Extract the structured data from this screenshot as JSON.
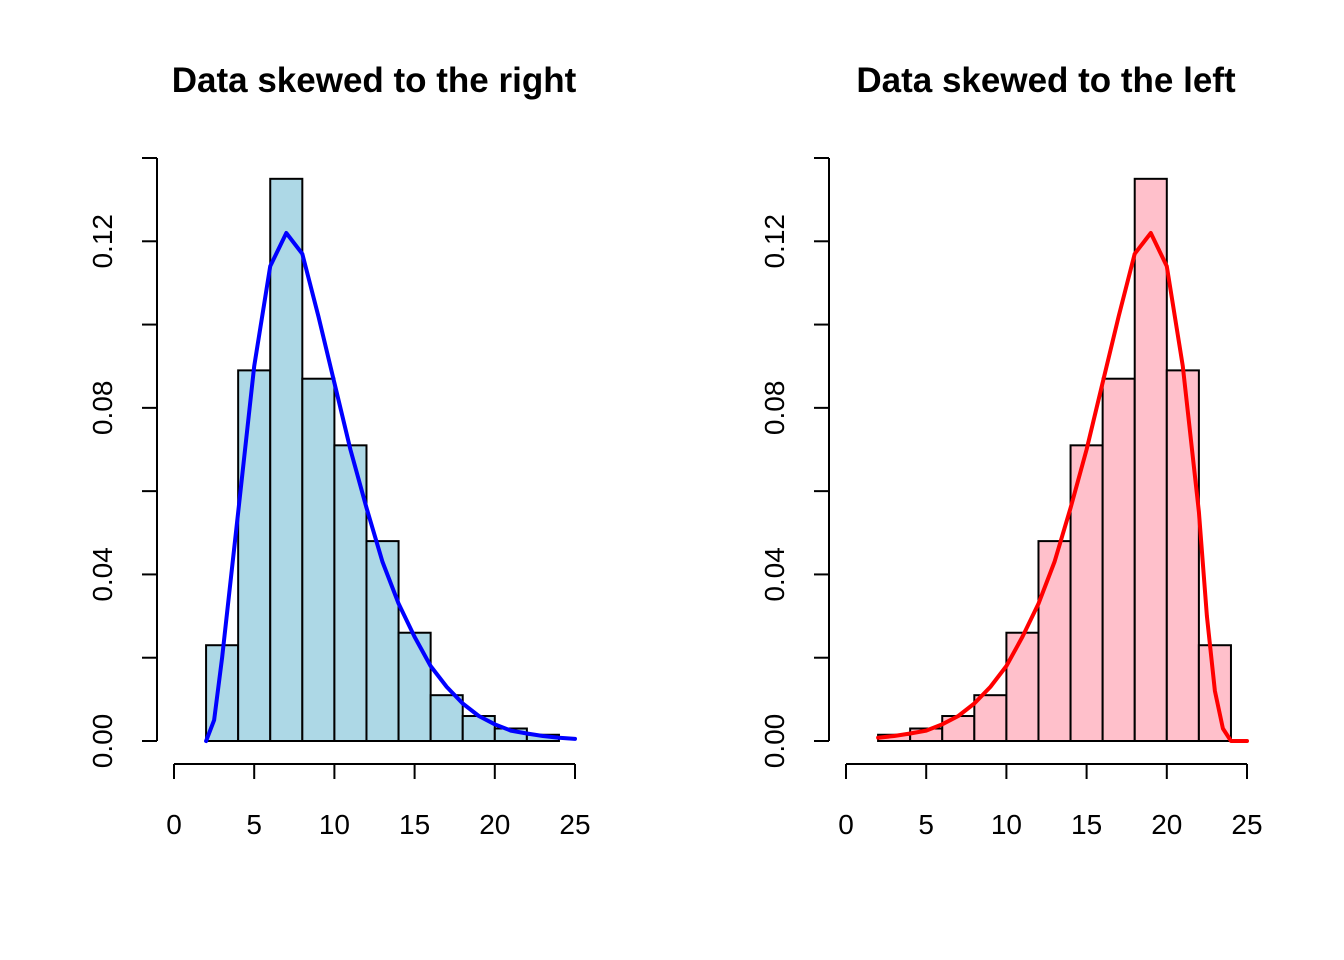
{
  "chart_data": [
    {
      "type": "bar",
      "title": "Data skewed to the right",
      "xlabel": "",
      "ylabel": "",
      "bar_color": "#add8e6",
      "line_color": "#0000ff",
      "xlim": [
        0,
        25
      ],
      "ylim": [
        0,
        0.14
      ],
      "x_ticks": [
        0,
        5,
        10,
        15,
        20,
        25
      ],
      "y_ticks": [
        0.0,
        0.02,
        0.04,
        0.06,
        0.08,
        0.1,
        0.12,
        0.14
      ],
      "y_tick_labels": [
        "0.00",
        "",
        "0.04",
        "",
        "0.08",
        "",
        "0.12",
        ""
      ],
      "bins": [
        [
          2,
          4
        ],
        [
          4,
          6
        ],
        [
          6,
          8
        ],
        [
          8,
          10
        ],
        [
          10,
          12
        ],
        [
          12,
          14
        ],
        [
          14,
          16
        ],
        [
          16,
          18
        ],
        [
          18,
          20
        ],
        [
          20,
          22
        ],
        [
          22,
          24
        ]
      ],
      "values": [
        0.023,
        0.089,
        0.135,
        0.087,
        0.071,
        0.048,
        0.026,
        0.011,
        0.006,
        0.003,
        0.0015
      ],
      "density": {
        "x": [
          2,
          2.5,
          3,
          4,
          5,
          6,
          7,
          8,
          9,
          10,
          11,
          12,
          13,
          14,
          15,
          16,
          17,
          18,
          19,
          20,
          21,
          22,
          23,
          24,
          25
        ],
        "y": [
          0,
          0.005,
          0.02,
          0.055,
          0.09,
          0.114,
          0.122,
          0.117,
          0.102,
          0.086,
          0.07,
          0.056,
          0.043,
          0.033,
          0.025,
          0.018,
          0.013,
          0.009,
          0.006,
          0.004,
          0.0025,
          0.0018,
          0.0012,
          0.0008,
          0.0005
        ]
      }
    },
    {
      "type": "bar",
      "title": "Data skewed to the left",
      "xlabel": "",
      "ylabel": "",
      "bar_color": "#ffc0cb",
      "line_color": "#ff0000",
      "xlim": [
        0,
        25
      ],
      "ylim": [
        0,
        0.14
      ],
      "x_ticks": [
        0,
        5,
        10,
        15,
        20,
        25
      ],
      "y_ticks": [
        0.0,
        0.02,
        0.04,
        0.06,
        0.08,
        0.1,
        0.12,
        0.14
      ],
      "y_tick_labels": [
        "0.00",
        "",
        "0.04",
        "",
        "0.08",
        "",
        "0.12",
        ""
      ],
      "bins": [
        [
          2,
          4
        ],
        [
          4,
          6
        ],
        [
          6,
          8
        ],
        [
          8,
          10
        ],
        [
          10,
          12
        ],
        [
          12,
          14
        ],
        [
          14,
          16
        ],
        [
          16,
          18
        ],
        [
          18,
          20
        ],
        [
          20,
          22
        ],
        [
          22,
          24
        ]
      ],
      "values": [
        0.0015,
        0.003,
        0.006,
        0.011,
        0.026,
        0.048,
        0.071,
        0.087,
        0.135,
        0.089,
        0.023
      ],
      "density": {
        "x": [
          2,
          3,
          4,
          5,
          6,
          7,
          8,
          9,
          10,
          11,
          12,
          13,
          14,
          15,
          16,
          17,
          18,
          19,
          20,
          21,
          22,
          22.5,
          23,
          23.5,
          24,
          25
        ],
        "y": [
          0.0008,
          0.0012,
          0.0018,
          0.0025,
          0.004,
          0.006,
          0.009,
          0.013,
          0.018,
          0.025,
          0.033,
          0.043,
          0.056,
          0.07,
          0.086,
          0.102,
          0.117,
          0.122,
          0.114,
          0.09,
          0.055,
          0.03,
          0.012,
          0.003,
          0,
          0
        ]
      }
    }
  ]
}
